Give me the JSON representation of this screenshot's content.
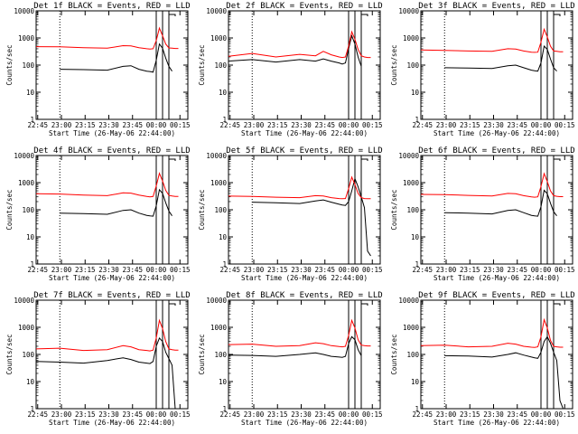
{
  "figure": {
    "ylabel": "Counts/sec",
    "xlabel_template": "Start Time (26-May-06 22:44:00)",
    "y_ticks": [
      "1",
      "10",
      "100",
      "1000",
      "10000"
    ],
    "x_ticks": [
      "22:45",
      "23:00",
      "23:15",
      "23:30",
      "23:45",
      "00:00",
      "00:15"
    ],
    "series_colors": {
      "events": "#000000",
      "lld": "#ff0000"
    }
  },
  "chart_data": [
    {
      "type": "line",
      "title": "Det 1f BLACK = Events, RED = LLD",
      "xlabel": "Start Time (26-May-06 22:44:00)",
      "ylabel": "Counts/sec",
      "ylim": [
        1,
        10000
      ],
      "x_unit": "minutes since 22:44",
      "series": [
        {
          "name": "Events",
          "color": "#000000",
          "x": [
            15,
            30,
            45,
            55,
            60,
            65,
            70,
            72,
            74,
            76,
            78,
            80,
            82,
            84,
            86,
            88,
            90
          ],
          "values": [
            70,
            68,
            65,
            90,
            95,
            70,
            60,
            58,
            55,
            150,
            600,
            420,
            180,
            90,
            60,
            null,
            null
          ]
        },
        {
          "name": "LLD",
          "color": "#ff0000",
          "x": [
            0,
            15,
            30,
            45,
            55,
            60,
            65,
            70,
            72,
            74,
            76,
            78,
            80,
            82,
            84,
            86,
            88,
            90
          ],
          "values": [
            480,
            470,
            440,
            420,
            520,
            510,
            440,
            400,
            390,
            400,
            800,
            2300,
            1200,
            600,
            430,
            420,
            410,
            410
          ]
        }
      ]
    },
    {
      "type": "line",
      "title": "Det 2f BLACK = Events, RED = LLD",
      "xlabel": "Start Time (26-May-06 22:44:00)",
      "ylabel": "Counts/sec",
      "ylim": [
        1,
        10000
      ],
      "x_unit": "minutes since 22:44",
      "series": [
        {
          "name": "Events",
          "color": "#000000",
          "x": [
            0,
            15,
            30,
            45,
            55,
            60,
            65,
            70,
            72,
            74,
            76,
            78,
            80,
            82,
            84,
            86,
            88,
            90
          ],
          "values": [
            140,
            160,
            130,
            160,
            140,
            170,
            140,
            120,
            110,
            120,
            400,
            1200,
            600,
            200,
            90,
            null,
            null,
            null
          ]
        },
        {
          "name": "LLD",
          "color": "#ff0000",
          "x": [
            0,
            15,
            30,
            45,
            55,
            60,
            65,
            70,
            72,
            74,
            76,
            78,
            80,
            82,
            84,
            86,
            88,
            90
          ],
          "values": [
            210,
            270,
            200,
            250,
            220,
            320,
            240,
            200,
            190,
            200,
            500,
            1700,
            900,
            380,
            220,
            200,
            190,
            190
          ]
        }
      ]
    },
    {
      "type": "line",
      "title": "Det 3f BLACK = Events, RED = LLD",
      "xlabel": "Start Time (26-May-06 22:44:00)",
      "ylabel": "Counts/sec",
      "ylim": [
        1,
        10000
      ],
      "x_unit": "minutes since 22:44",
      "series": [
        {
          "name": "Events",
          "color": "#000000",
          "x": [
            15,
            30,
            45,
            55,
            60,
            65,
            70,
            72,
            74,
            76,
            78,
            80,
            82,
            84,
            86,
            88,
            90
          ],
          "values": [
            80,
            78,
            75,
            95,
            100,
            80,
            65,
            62,
            60,
            120,
            500,
            380,
            170,
            80,
            60,
            null,
            null
          ]
        },
        {
          "name": "LLD",
          "color": "#ff0000",
          "x": [
            0,
            15,
            30,
            45,
            55,
            60,
            65,
            70,
            72,
            74,
            76,
            78,
            80,
            82,
            84,
            86,
            88,
            90
          ],
          "values": [
            360,
            350,
            330,
            320,
            400,
            390,
            330,
            300,
            295,
            300,
            700,
            2100,
            1100,
            500,
            330,
            320,
            310,
            310
          ]
        }
      ]
    },
    {
      "type": "line",
      "title": "Det 4f BLACK = Events, RED = LLD",
      "xlabel": "Start Time (26-May-06 22:44:00)",
      "ylabel": "Counts/sec",
      "ylim": [
        1,
        10000
      ],
      "x_unit": "minutes since 22:44",
      "series": [
        {
          "name": "Events",
          "color": "#000000",
          "x": [
            15,
            30,
            45,
            55,
            60,
            65,
            70,
            72,
            74,
            76,
            78,
            80,
            82,
            84,
            86,
            88,
            90
          ],
          "values": [
            75,
            72,
            68,
            95,
            100,
            75,
            62,
            60,
            58,
            140,
            550,
            400,
            180,
            90,
            60,
            null,
            null
          ]
        },
        {
          "name": "LLD",
          "color": "#ff0000",
          "x": [
            0,
            15,
            30,
            45,
            55,
            60,
            65,
            70,
            72,
            74,
            76,
            78,
            80,
            82,
            84,
            86,
            88,
            90
          ],
          "values": [
            390,
            380,
            350,
            330,
            420,
            410,
            350,
            310,
            300,
            310,
            750,
            2200,
            1150,
            520,
            340,
            320,
            310,
            310
          ]
        }
      ]
    },
    {
      "type": "line",
      "title": "Det 5f BLACK = Events, RED = LLD",
      "xlabel": "Start Time (26-May-06 22:44:00)",
      "ylabel": "Counts/sec",
      "ylim": [
        1,
        10000
      ],
      "x_unit": "minutes since 22:44",
      "series": [
        {
          "name": "Events",
          "color": "#000000",
          "x": [
            15,
            30,
            45,
            55,
            60,
            65,
            70,
            72,
            74,
            76,
            78,
            80,
            82,
            84,
            86,
            88,
            90
          ],
          "values": [
            190,
            180,
            170,
            210,
            230,
            190,
            160,
            150,
            145,
            200,
            500,
            1400,
            700,
            300,
            120,
            3,
            2
          ]
        },
        {
          "name": "LLD",
          "color": "#ff0000",
          "x": [
            0,
            15,
            30,
            45,
            55,
            60,
            65,
            70,
            72,
            74,
            76,
            78,
            80,
            82,
            84,
            86,
            88,
            90
          ],
          "values": [
            320,
            310,
            290,
            280,
            330,
            320,
            280,
            260,
            255,
            260,
            600,
            1600,
            850,
            400,
            280,
            260,
            255,
            255
          ]
        }
      ]
    },
    {
      "type": "line",
      "title": "Det 6f BLACK = Events, RED = LLD",
      "xlabel": "Start Time (26-May-06 22:44:00)",
      "ylabel": "Counts/sec",
      "ylim": [
        1,
        10000
      ],
      "x_unit": "minutes since 22:44",
      "series": [
        {
          "name": "Events",
          "color": "#000000",
          "x": [
            15,
            30,
            45,
            55,
            60,
            65,
            70,
            72,
            74,
            76,
            78,
            80,
            82,
            84,
            86,
            88,
            90
          ],
          "values": [
            78,
            75,
            70,
            95,
            100,
            78,
            62,
            60,
            58,
            130,
            520,
            390,
            175,
            85,
            60,
            null,
            null
          ]
        },
        {
          "name": "LLD",
          "color": "#ff0000",
          "x": [
            0,
            15,
            30,
            45,
            55,
            60,
            65,
            70,
            72,
            74,
            76,
            78,
            80,
            82,
            84,
            86,
            88,
            90
          ],
          "values": [
            370,
            360,
            340,
            320,
            400,
            390,
            330,
            300,
            290,
            300,
            720,
            2150,
            1100,
            500,
            330,
            315,
            305,
            305
          ]
        }
      ]
    },
    {
      "type": "line",
      "title": "Det 7f BLACK = Events, RED = LLD",
      "xlabel": "Start Time (26-May-06 22:44:00)",
      "ylabel": "Counts/sec",
      "ylim": [
        1,
        10000
      ],
      "x_unit": "minutes since 22:44",
      "series": [
        {
          "name": "Events",
          "color": "#000000",
          "x": [
            0,
            15,
            30,
            45,
            55,
            60,
            65,
            70,
            72,
            74,
            76,
            78,
            80,
            82,
            84,
            86,
            88,
            90
          ],
          "values": [
            55,
            52,
            48,
            60,
            75,
            65,
            52,
            48,
            46,
            55,
            200,
            400,
            300,
            120,
            70,
            40,
            1,
            1
          ]
        },
        {
          "name": "LLD",
          "color": "#ff0000",
          "x": [
            0,
            15,
            30,
            45,
            55,
            60,
            65,
            70,
            72,
            74,
            76,
            78,
            80,
            82,
            84,
            86,
            88,
            90
          ],
          "values": [
            160,
            170,
            140,
            150,
            210,
            190,
            150,
            140,
            135,
            145,
            400,
            1800,
            900,
            300,
            160,
            150,
            145,
            145
          ]
        }
      ]
    },
    {
      "type": "line",
      "title": "Det 8f BLACK = Events, RED = LLD",
      "xlabel": "Start Time (26-May-06 22:44:00)",
      "ylabel": "Counts/sec",
      "ylim": [
        1,
        10000
      ],
      "x_unit": "minutes since 22:44",
      "series": [
        {
          "name": "Events",
          "color": "#000000",
          "x": [
            0,
            15,
            30,
            45,
            55,
            60,
            65,
            70,
            72,
            74,
            76,
            78,
            80,
            82,
            84,
            86,
            88,
            90
          ],
          "values": [
            95,
            92,
            85,
            100,
            115,
            100,
            85,
            80,
            78,
            85,
            250,
            450,
            350,
            150,
            90,
            null,
            null,
            null
          ]
        },
        {
          "name": "LLD",
          "color": "#ff0000",
          "x": [
            0,
            15,
            30,
            45,
            55,
            60,
            65,
            70,
            72,
            74,
            76,
            78,
            80,
            82,
            84,
            86,
            88,
            90
          ],
          "values": [
            230,
            240,
            200,
            210,
            270,
            250,
            210,
            195,
            190,
            200,
            500,
            1800,
            950,
            350,
            220,
            210,
            205,
            205
          ]
        }
      ]
    },
    {
      "type": "line",
      "title": "Det 9f BLACK = Events, RED = LLD",
      "xlabel": "Start Time (26-May-06 22:44:00)",
      "ylabel": "Counts/sec",
      "ylim": [
        1,
        10000
      ],
      "x_unit": "minutes since 22:44",
      "series": [
        {
          "name": "Events",
          "color": "#000000",
          "x": [
            15,
            30,
            45,
            55,
            60,
            65,
            70,
            72,
            74,
            76,
            78,
            80,
            82,
            84,
            86,
            88,
            90
          ],
          "values": [
            90,
            88,
            80,
            100,
            115,
            95,
            80,
            75,
            72,
            120,
            300,
            450,
            260,
            120,
            60,
            2,
            1
          ]
        },
        {
          "name": "LLD",
          "color": "#ff0000",
          "x": [
            0,
            15,
            30,
            45,
            55,
            60,
            65,
            70,
            72,
            74,
            76,
            78,
            80,
            82,
            84,
            86,
            88,
            90
          ],
          "values": [
            210,
            220,
            190,
            200,
            260,
            240,
            200,
            185,
            180,
            190,
            450,
            1900,
            950,
            330,
            200,
            190,
            185,
            185
          ]
        }
      ]
    }
  ]
}
